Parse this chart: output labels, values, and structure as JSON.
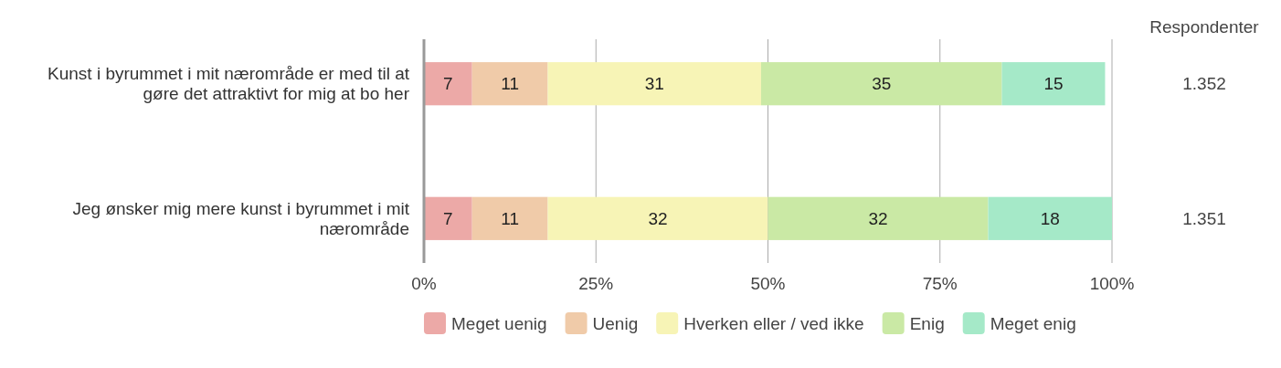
{
  "chart_data": {
    "type": "bar",
    "orientation": "horizontal",
    "stacked": true,
    "categories": [
      "Kunst i byrummet i mit nærområde er med til at gøre det attraktivt for mig at bo her",
      "Jeg ønsker mig mere kunst i byrummet i mit nærområde"
    ],
    "series": [
      {
        "name": "Meget uenig",
        "color": "#eca9a7",
        "values": [
          7,
          7
        ]
      },
      {
        "name": "Uenig",
        "color": "#f0cba9",
        "values": [
          11,
          11
        ]
      },
      {
        "name": "Hverken eller / ved ikke",
        "color": "#f7f4b6",
        "values": [
          31,
          32
        ]
      },
      {
        "name": "Enig",
        "color": "#cae9a5",
        "values": [
          35,
          32
        ]
      },
      {
        "name": "Meget enig",
        "color": "#a5e9c8",
        "values": [
          15,
          18
        ]
      }
    ],
    "xlim": [
      0,
      100
    ],
    "xticks": [
      {
        "value": 0,
        "label": "0%"
      },
      {
        "value": 25,
        "label": "25%"
      },
      {
        "value": 50,
        "label": "50%"
      },
      {
        "value": 75,
        "label": "75%"
      },
      {
        "value": 100,
        "label": "100%"
      }
    ],
    "grid": "x",
    "data_labels": true,
    "legend": "bottom",
    "y2label": "Respondenter",
    "annotations": [
      "1.352",
      "1.351"
    ]
  }
}
